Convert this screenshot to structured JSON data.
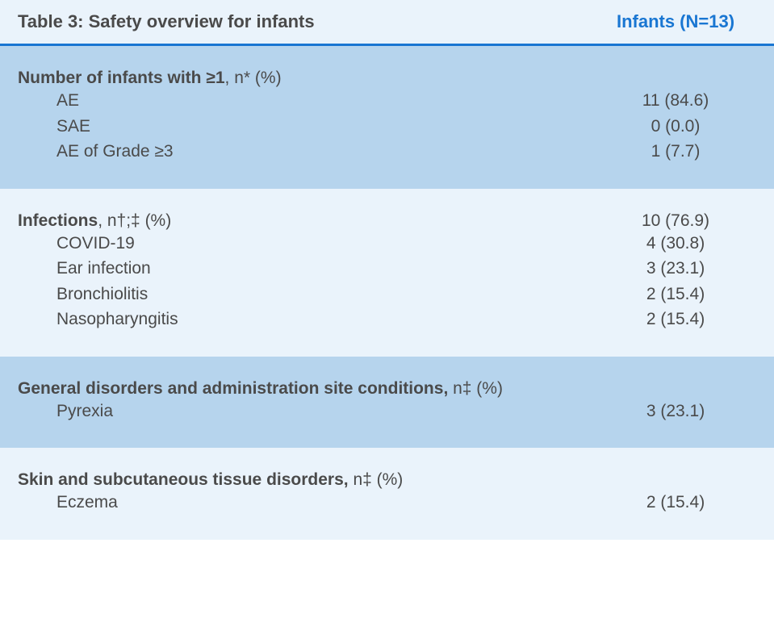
{
  "header": {
    "title": "Table 3: Safety overview for infants",
    "value_header": "Infants (N=13)"
  },
  "sections": [
    {
      "bg": "alt",
      "label_bold": "Number of infants with ≥1",
      "label_suffix": ", n* (%)",
      "header_value": "",
      "items": [
        {
          "label": "AE",
          "value": "11 (84.6)"
        },
        {
          "label": "SAE",
          "value": "0 (0.0)"
        },
        {
          "label": "AE of Grade ≥3",
          "value": "1 (7.7)"
        }
      ]
    },
    {
      "bg": "light",
      "label_bold": "Infections",
      "label_suffix": ", n†;‡ (%)",
      "header_value": "10 (76.9)",
      "items": [
        {
          "label": "COVID-19",
          "value": "4 (30.8)"
        },
        {
          "label": "Ear infection",
          "value": "3 (23.1)"
        },
        {
          "label": "Bronchiolitis",
          "value": "2 (15.4)"
        },
        {
          "label": "Nasopharyngitis",
          "value": "2 (15.4)"
        }
      ]
    },
    {
      "bg": "alt",
      "label_bold": "General disorders and administration site conditions,",
      "label_suffix": " n‡ (%)",
      "header_value": "",
      "items": [
        {
          "label": "Pyrexia",
          "value": "3 (23.1)"
        }
      ]
    },
    {
      "bg": "light",
      "label_bold": "Skin and subcutaneous tissue disorders,",
      "label_suffix": " n‡ (%)",
      "header_value": "",
      "items": [
        {
          "label": "Eczema",
          "value": "2 (15.4)"
        }
      ]
    }
  ],
  "colors": {
    "header_bg": "#eaf3fb",
    "border": "#1976d2",
    "text": "#4a4a4a",
    "accent": "#1976d2",
    "alt_bg": "#b6d4ed",
    "light_bg": "#eaf3fb"
  }
}
